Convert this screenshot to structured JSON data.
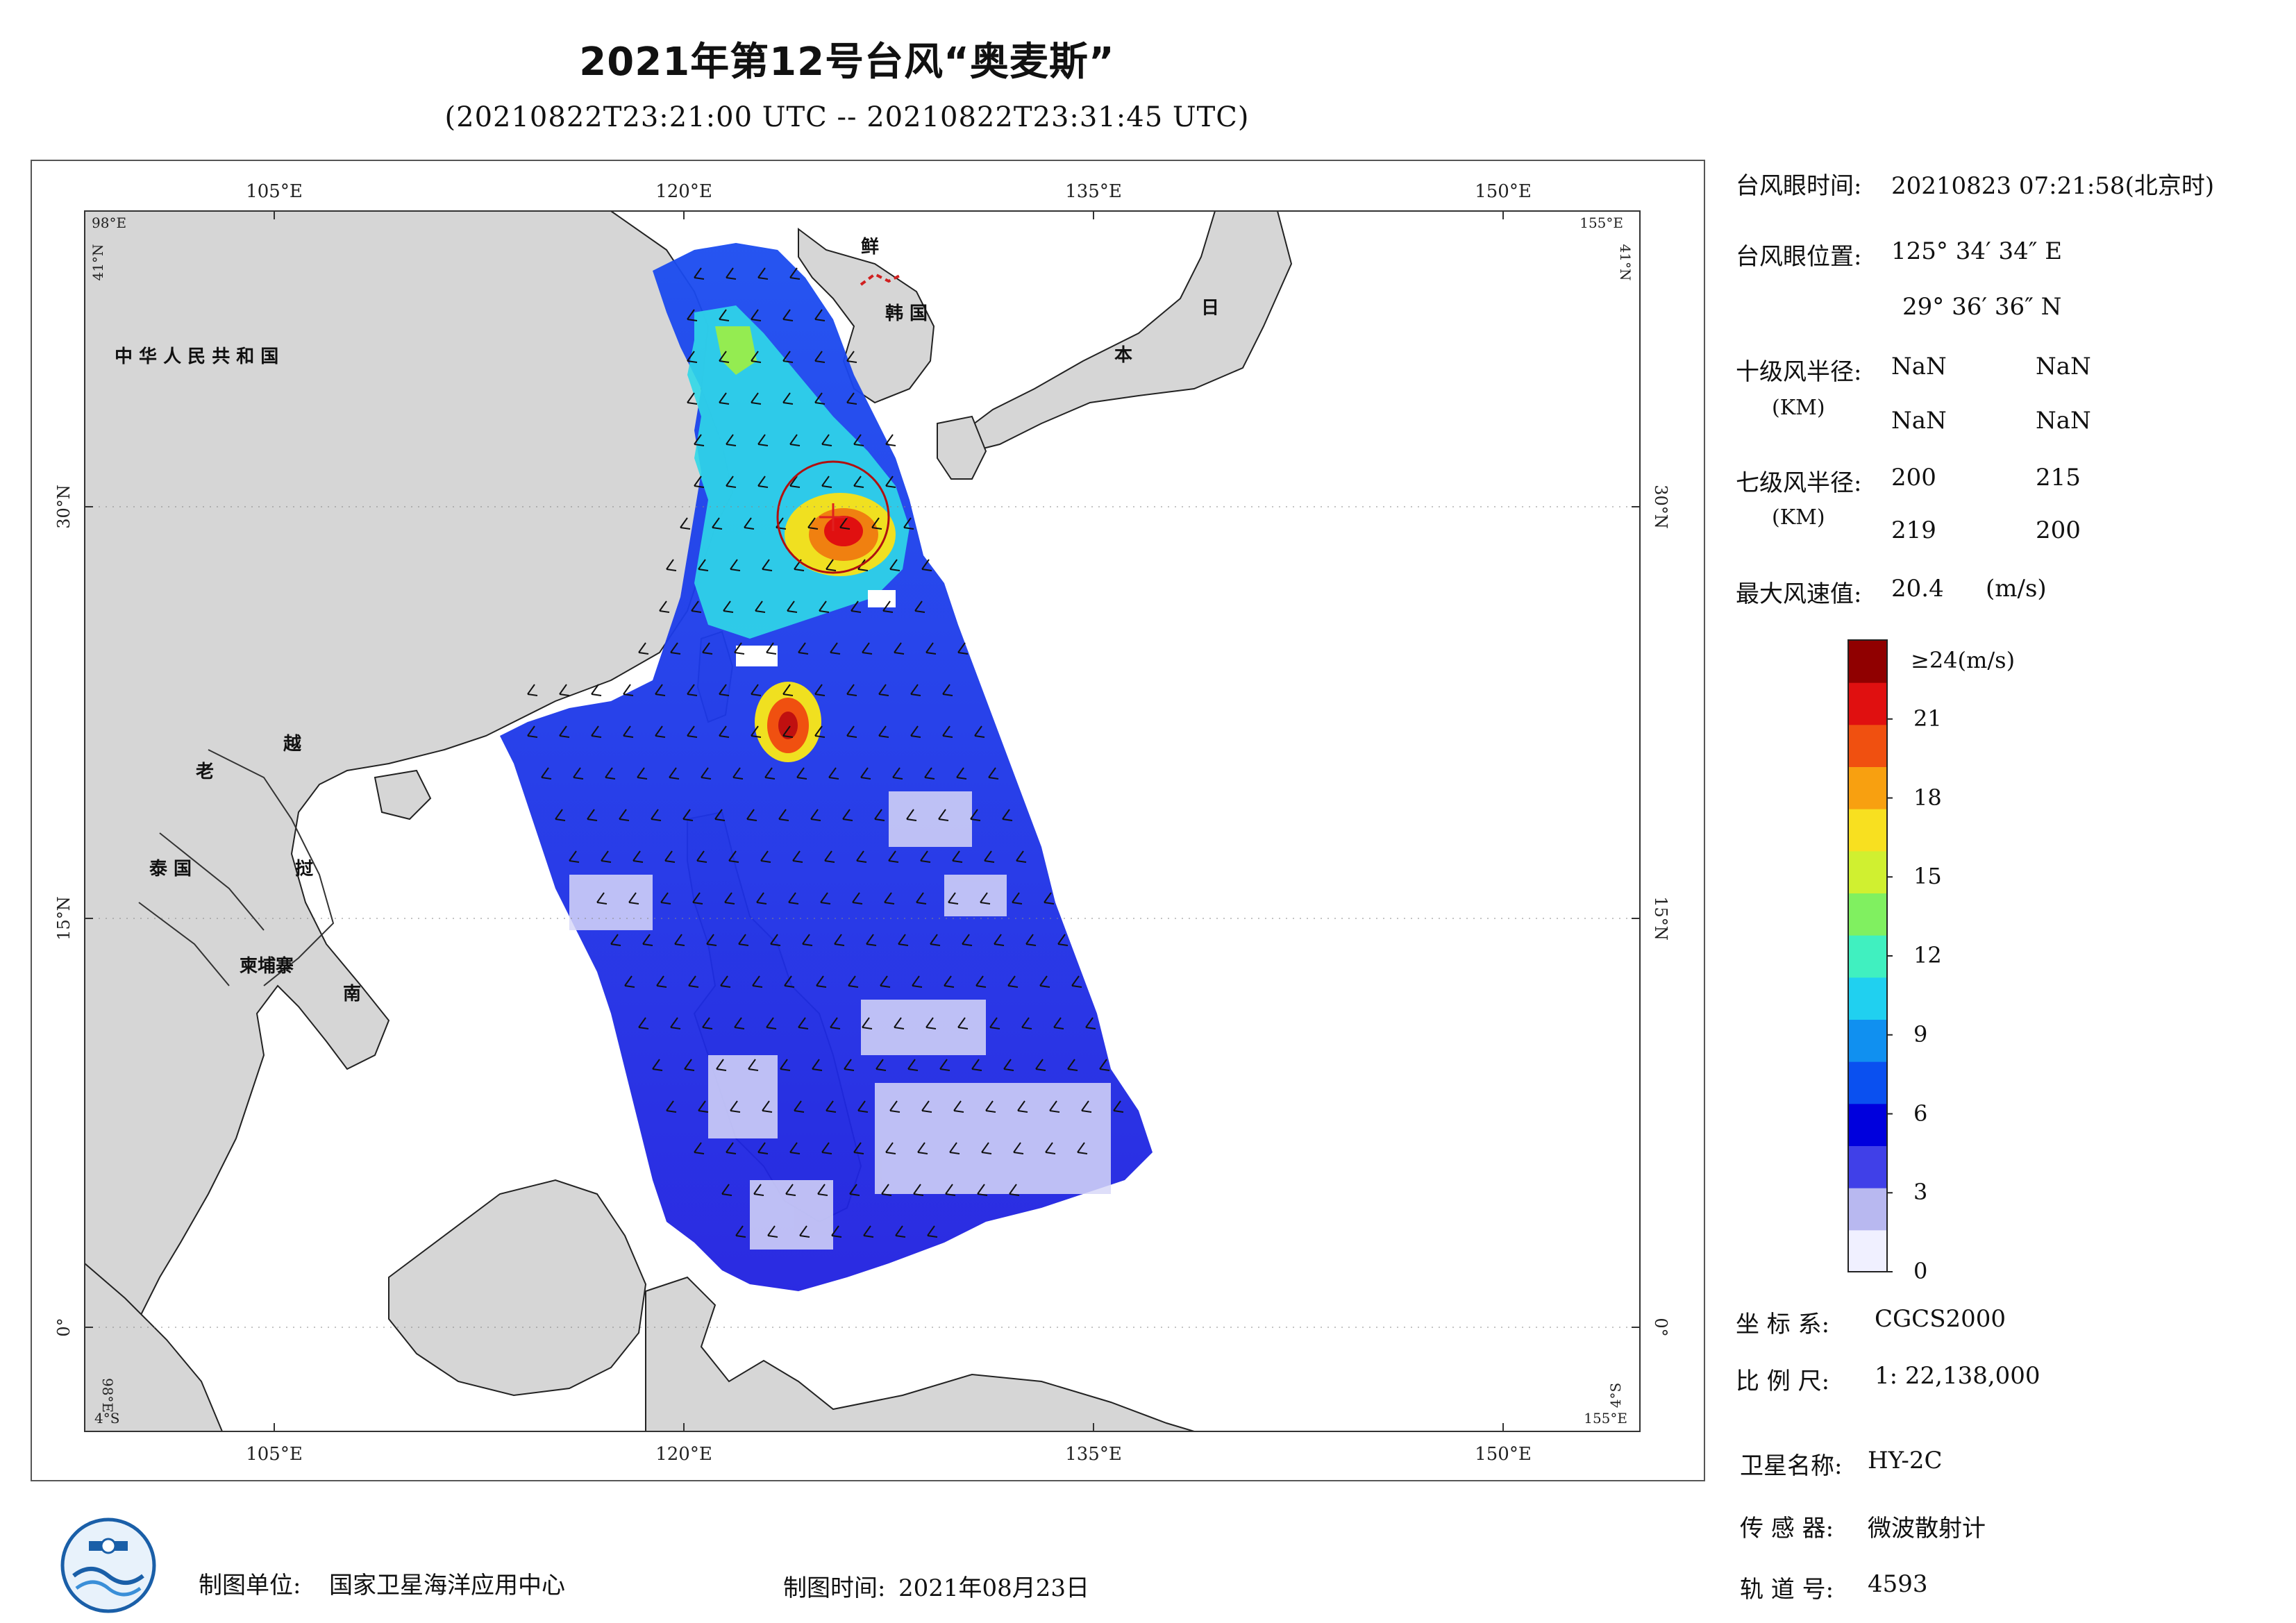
{
  "title": "2021年第12号台风“奥麦斯”",
  "subtitle": "(20210822T23:21:00 UTC -- 20210822T23:31:45 UTC)",
  "map": {
    "top_lon_labels": [
      "105°E",
      "120°E",
      "135°E",
      "150°E"
    ],
    "bottom_lon_labels": [
      "105°E",
      "120°E",
      "135°E",
      "150°E"
    ],
    "left_lat_labels": [
      "30°N",
      "15°N",
      "0°"
    ],
    "right_lat_labels": [
      "30°N",
      "15°N",
      "0°"
    ],
    "corner_tl_lon": "98°E",
    "corner_tl_lat": "41°N",
    "corner_tr_lon": "155°E",
    "corner_tr_lat": "41°N",
    "corner_bl_lon": "98°E",
    "corner_bl_lat": "4°S",
    "corner_br_lon": "155°E",
    "corner_br_lat": "4°S",
    "country_labels": {
      "china": "中 华 人 民 共 和 国",
      "korea_n": "鲜",
      "korea_s": "韩 国",
      "japan_1": "日",
      "japan_2": "本",
      "laos": "老",
      "vietnam_1": "越",
      "vietnam_2": "挝",
      "vietnam_3": "南",
      "thailand": "泰 国",
      "cambodia": "柬埔寨"
    }
  },
  "info": {
    "eye_time_label": "台风眼时间:",
    "eye_time_value": "20210823 07:21:58(北京时)",
    "eye_pos_label": "台风眼位置:",
    "eye_lon": "125° 34′ 34″ E",
    "eye_lat": "29° 36′ 36″ N",
    "r10_label": "十级风半径:",
    "r10_unit": "(KM)",
    "r10_values": [
      "NaN",
      "NaN",
      "NaN",
      "NaN"
    ],
    "r7_label": "七级风半径:",
    "r7_unit": "(KM)",
    "r7_values": [
      "200",
      "215",
      "219",
      "200"
    ],
    "max_wind_label": "最大风速值:",
    "max_wind_value": "20.4",
    "max_wind_unit": "(m/s)"
  },
  "colorbar": {
    "top_label": "≥24(m/s)",
    "tick_labels": [
      "21",
      "18",
      "15",
      "12",
      "9",
      "6",
      "3",
      "0"
    ],
    "tick_values": [
      21,
      18,
      15,
      12,
      9,
      6,
      3,
      0
    ],
    "max": 24,
    "colors": [
      "#f0f0ff",
      "#b8b8f0",
      "#4040e8",
      "#0000dd",
      "#0a50f0",
      "#1090f0",
      "#20d0f0",
      "#40f0c0",
      "#80f060",
      "#d0f030",
      "#f8e020",
      "#f8a010",
      "#f05010",
      "#e01010",
      "#900000"
    ]
  },
  "meta": {
    "coord_label": "坐 标 系:",
    "coord_value": "CGCS2000",
    "scale_label": "比 例 尺:",
    "scale_value": "1: 22,138,000",
    "sat_label": "卫星名称:",
    "sat_value": "HY-2C",
    "sensor_label": "传 感 器:",
    "sensor_value": "微波散射计",
    "orbit_label": "轨 道 号:",
    "orbit_value": "4593"
  },
  "footer": {
    "unit_label": "制图单位:",
    "unit_value": "国家卫星海洋应用中心",
    "time_label": "制图时间:",
    "time_value": "2021年08月23日"
  }
}
